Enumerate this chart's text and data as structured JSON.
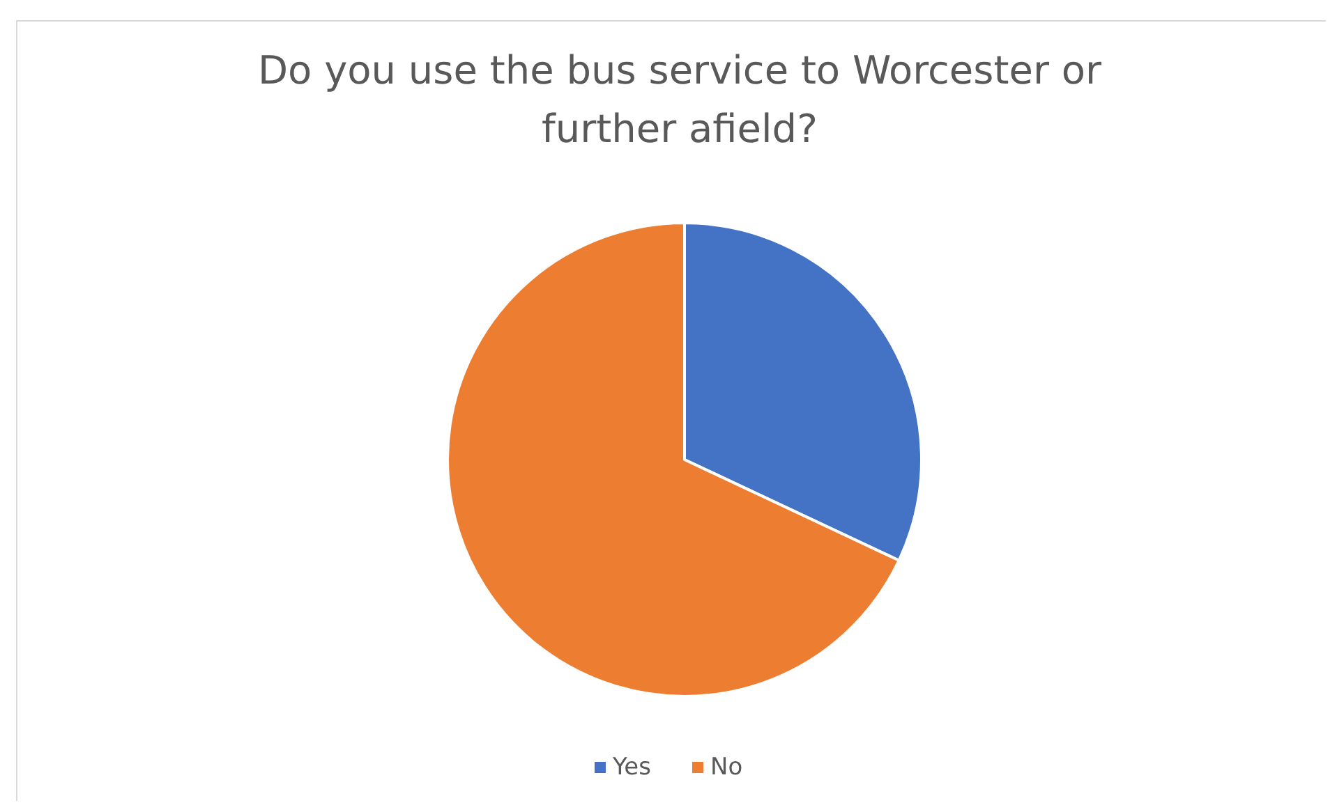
{
  "chart_data": {
    "type": "pie",
    "title": "Do you use the bus service to Worcester or further afield?",
    "categories": [
      "Yes",
      "No"
    ],
    "values": [
      32,
      68
    ],
    "colors": [
      "#4472c4",
      "#ed7d31"
    ],
    "legend": "bottom"
  }
}
